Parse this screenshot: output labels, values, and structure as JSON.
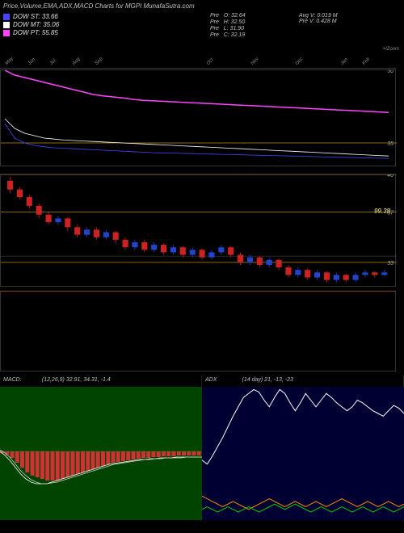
{
  "title": "Price,Volume,EMA,ADX,MACD Charts for MGPI MunafaSutra.com",
  "legend": {
    "st": {
      "label": "DOW ST:",
      "value": "33.66",
      "color": "#4444ff"
    },
    "mt": {
      "label": "DOW MT:",
      "value": "35.06",
      "color": "#ffffff"
    },
    "pt": {
      "label": "DOW PT:",
      "value": "55.85",
      "color": "#ff44ff"
    }
  },
  "ohlc": {
    "o": {
      "label": "Pre",
      "key": "O:",
      "val": "32.64"
    },
    "h": {
      "label": "Pre",
      "key": "H:",
      "val": "32.50"
    },
    "l": {
      "label": "Pre",
      "key": "L:",
      "val": "31.90"
    },
    "c": {
      "label": "Pre",
      "key": "C:",
      "val": "32.19"
    }
  },
  "avg": {
    "v1": {
      "label": "Avg V:",
      "val": "0.019 M"
    },
    "v2": {
      "label": "Pre   V:",
      "val": "0.428 M"
    }
  },
  "zoom_hint": "+/Zoom",
  "price_chart": {
    "type": "line",
    "ylim": [
      30,
      50
    ],
    "yticks": [
      35,
      50
    ],
    "hlines": [
      {
        "y": 35,
        "color": "#8B6914"
      }
    ],
    "series": {
      "pt": {
        "color": "#ff44ff",
        "width": 1.5,
        "points": [
          50,
          49,
          48.5,
          48,
          47.5,
          47,
          46.5,
          46,
          45.5,
          45,
          44.7,
          44.5,
          44.3,
          44,
          43.8,
          43.7,
          43.6,
          43.5,
          43.4,
          43.3,
          43.2,
          43.1,
          43,
          42.9,
          42.8,
          42.7,
          42.6,
          42.5,
          42.4,
          42.3,
          42.2,
          42.1,
          42,
          41.9,
          41.8,
          41.7,
          41.6,
          41.5,
          41.4,
          41.3
        ]
      },
      "mt": {
        "color": "#ffffff",
        "width": 0.8,
        "points": [
          40,
          38,
          37,
          36.5,
          36,
          35.8,
          35.6,
          35.5,
          35.4,
          35.3,
          35.2,
          35.1,
          35,
          34.9,
          34.8,
          34.7,
          34.6,
          34.5,
          34.4,
          34.3,
          34.2,
          34.1,
          34,
          33.9,
          33.8,
          33.7,
          33.6,
          33.5,
          33.4,
          33.3,
          33.2,
          33.1,
          33,
          32.9,
          32.8,
          32.7,
          32.6,
          32.5,
          32.4,
          32.3
        ]
      },
      "st": {
        "color": "#4444ff",
        "width": 0.8,
        "points": [
          39,
          36,
          35,
          34.5,
          34.2,
          34,
          33.9,
          33.8,
          33.7,
          33.6,
          33.5,
          33.4,
          33.3,
          33.2,
          33.1,
          33,
          32.95,
          32.9,
          32.85,
          32.8,
          32.75,
          32.7,
          32.65,
          32.6,
          32.55,
          32.5,
          32.45,
          32.4,
          32.35,
          32.3,
          32.25,
          32.2,
          32.15,
          32.1,
          32.05,
          32,
          31.95,
          31.9,
          31.85,
          31.8
        ]
      }
    },
    "dow_value": "99.38"
  },
  "candle_chart": {
    "type": "candle",
    "ylim": [
      31,
      40
    ],
    "yticks": [
      33,
      37,
      40
    ],
    "hlines": [
      {
        "y": 40,
        "color": "#8B6914"
      },
      {
        "y": 37,
        "color": "#8B6914"
      },
      {
        "y": 33,
        "color": "#8B6914"
      }
    ],
    "extra_line": {
      "y": 33.5,
      "color": "#555555"
    },
    "candles": [
      {
        "o": 39.5,
        "c": 38.8,
        "h": 39.8,
        "l": 38.5,
        "color": "#cc2222"
      },
      {
        "o": 38.8,
        "c": 38.2,
        "h": 39.0,
        "l": 38.0,
        "color": "#cc2222"
      },
      {
        "o": 38.2,
        "c": 37.5,
        "h": 38.4,
        "l": 37.3,
        "color": "#cc2222"
      },
      {
        "o": 37.5,
        "c": 36.8,
        "h": 37.7,
        "l": 36.5,
        "color": "#cc2222"
      },
      {
        "o": 36.8,
        "c": 36.2,
        "h": 37.0,
        "l": 36.0,
        "color": "#cc2222"
      },
      {
        "o": 36.2,
        "c": 36.5,
        "h": 36.7,
        "l": 36.0,
        "color": "#2244cc"
      },
      {
        "o": 36.5,
        "c": 35.8,
        "h": 36.6,
        "l": 35.5,
        "color": "#cc2222"
      },
      {
        "o": 35.8,
        "c": 35.2,
        "h": 36.0,
        "l": 35.0,
        "color": "#cc2222"
      },
      {
        "o": 35.2,
        "c": 35.6,
        "h": 35.8,
        "l": 35.0,
        "color": "#2244cc"
      },
      {
        "o": 35.6,
        "c": 35.0,
        "h": 35.8,
        "l": 34.8,
        "color": "#cc2222"
      },
      {
        "o": 35.0,
        "c": 35.4,
        "h": 35.6,
        "l": 34.8,
        "color": "#2244cc"
      },
      {
        "o": 35.4,
        "c": 34.8,
        "h": 35.5,
        "l": 34.5,
        "color": "#cc2222"
      },
      {
        "o": 34.8,
        "c": 34.2,
        "h": 35.0,
        "l": 34.0,
        "color": "#cc2222"
      },
      {
        "o": 34.2,
        "c": 34.6,
        "h": 34.8,
        "l": 34.0,
        "color": "#2244cc"
      },
      {
        "o": 34.6,
        "c": 34.0,
        "h": 34.8,
        "l": 33.8,
        "color": "#cc2222"
      },
      {
        "o": 34.0,
        "c": 34.4,
        "h": 34.6,
        "l": 33.8,
        "color": "#2244cc"
      },
      {
        "o": 34.4,
        "c": 33.8,
        "h": 34.5,
        "l": 33.6,
        "color": "#cc2222"
      },
      {
        "o": 33.8,
        "c": 34.2,
        "h": 34.4,
        "l": 33.6,
        "color": "#2244cc"
      },
      {
        "o": 34.2,
        "c": 33.6,
        "h": 34.3,
        "l": 33.4,
        "color": "#cc2222"
      },
      {
        "o": 33.6,
        "c": 34.0,
        "h": 34.2,
        "l": 33.4,
        "color": "#2244cc"
      },
      {
        "o": 34.0,
        "c": 33.4,
        "h": 34.1,
        "l": 33.2,
        "color": "#cc2222"
      },
      {
        "o": 33.4,
        "c": 33.8,
        "h": 34.0,
        "l": 33.2,
        "color": "#2244cc"
      },
      {
        "o": 33.8,
        "c": 34.2,
        "h": 34.4,
        "l": 33.6,
        "color": "#2244cc"
      },
      {
        "o": 34.2,
        "c": 33.6,
        "h": 34.3,
        "l": 33.4,
        "color": "#cc2222"
      },
      {
        "o": 33.6,
        "c": 33.0,
        "h": 33.8,
        "l": 32.8,
        "color": "#cc2222"
      },
      {
        "o": 33.0,
        "c": 33.4,
        "h": 33.6,
        "l": 32.8,
        "color": "#2244cc"
      },
      {
        "o": 33.4,
        "c": 32.8,
        "h": 33.5,
        "l": 32.6,
        "color": "#cc2222"
      },
      {
        "o": 32.8,
        "c": 33.2,
        "h": 33.4,
        "l": 32.6,
        "color": "#2244cc"
      },
      {
        "o": 33.2,
        "c": 32.6,
        "h": 33.3,
        "l": 32.4,
        "color": "#cc2222"
      },
      {
        "o": 32.6,
        "c": 32.0,
        "h": 32.8,
        "l": 31.8,
        "color": "#cc2222"
      },
      {
        "o": 32.0,
        "c": 32.4,
        "h": 32.6,
        "l": 31.8,
        "color": "#2244cc"
      },
      {
        "o": 32.4,
        "c": 31.8,
        "h": 32.5,
        "l": 31.6,
        "color": "#cc2222"
      },
      {
        "o": 31.8,
        "c": 32.2,
        "h": 32.4,
        "l": 31.6,
        "color": "#2244cc"
      },
      {
        "o": 32.2,
        "c": 31.6,
        "h": 32.3,
        "l": 31.4,
        "color": "#cc2222"
      },
      {
        "o": 31.6,
        "c": 32.0,
        "h": 32.2,
        "l": 31.4,
        "color": "#2244cc"
      },
      {
        "o": 32.0,
        "c": 31.6,
        "h": 32.1,
        "l": 31.4,
        "color": "#cc2222"
      },
      {
        "o": 31.6,
        "c": 32.0,
        "h": 32.2,
        "l": 31.4,
        "color": "#2244cc"
      },
      {
        "o": 32.0,
        "c": 32.2,
        "h": 32.4,
        "l": 31.8,
        "color": "#2244cc"
      },
      {
        "o": 32.2,
        "c": 32.0,
        "h": 32.3,
        "l": 31.8,
        "color": "#cc2222"
      },
      {
        "o": 32.0,
        "c": 32.2,
        "h": 32.4,
        "l": 31.9,
        "color": "#2244cc"
      }
    ]
  },
  "macd": {
    "label": "MACD:",
    "params": "(12,26,9) 32.91, 34.31, -1.4",
    "bg": "#004400",
    "zero_y": 80,
    "hist_color": "#cc3333",
    "hist": [
      -2,
      -4,
      -8,
      -14,
      -20,
      -26,
      -30,
      -32,
      -34,
      -36,
      -36,
      -36,
      -34,
      -32,
      -30,
      -28,
      -26,
      -24,
      -22,
      -20,
      -18,
      -16,
      -14,
      -13,
      -12,
      -11,
      -10,
      -9,
      -8,
      -8,
      -7,
      -7,
      -6,
      -6,
      -6,
      -5,
      -5,
      -5,
      -5,
      -5
    ],
    "line1": {
      "color": "#ffffff",
      "points": [
        0,
        -5,
        -12,
        -20,
        -28,
        -34,
        -38,
        -40,
        -40,
        -40,
        -38,
        -36,
        -34,
        -32,
        -30,
        -28,
        -26,
        -24,
        -22,
        -20,
        -18,
        -16,
        -15,
        -14,
        -13,
        -12,
        -11,
        -10,
        -10,
        -9,
        -9,
        -8,
        -8,
        -8,
        -7,
        -7,
        -7,
        -7,
        -7,
        -7
      ]
    },
    "line2": {
      "color": "#cccccc",
      "points": [
        2,
        -2,
        -8,
        -16,
        -24,
        -30,
        -35,
        -38,
        -40,
        -40,
        -39,
        -38,
        -36,
        -34,
        -32,
        -30,
        -28,
        -26,
        -24,
        -22,
        -20,
        -18,
        -16,
        -15,
        -14,
        -13,
        -12,
        -11,
        -10,
        -10,
        -9,
        -9,
        -8,
        -8,
        -8,
        -8,
        -7,
        -7,
        -7,
        -7
      ]
    }
  },
  "adx": {
    "label": "ADX",
    "params": "(14   day) 21, -13, -23",
    "bg": "#000033",
    "lines": {
      "adx": {
        "color": "#ffffff",
        "points": [
          45,
          42,
          48,
          55,
          62,
          70,
          78,
          85,
          92,
          95,
          98,
          96,
          90,
          85,
          92,
          98,
          95,
          88,
          82,
          88,
          95,
          90,
          85,
          90,
          95,
          92,
          88,
          85,
          82,
          85,
          90,
          88,
          85,
          82,
          80,
          78,
          82,
          86,
          84,
          80
        ]
      },
      "pd": {
        "color": "#ff8800",
        "points": [
          18,
          16,
          14,
          12,
          10,
          12,
          14,
          12,
          10,
          8,
          10,
          12,
          14,
          16,
          14,
          12,
          10,
          12,
          14,
          12,
          10,
          12,
          14,
          12,
          10,
          12,
          14,
          16,
          14,
          12,
          10,
          12,
          14,
          12,
          10,
          12,
          14,
          12,
          10,
          12
        ]
      },
      "md": {
        "color": "#00cc00",
        "points": [
          8,
          10,
          8,
          6,
          8,
          10,
          8,
          6,
          8,
          10,
          8,
          6,
          8,
          10,
          12,
          10,
          8,
          10,
          12,
          10,
          8,
          6,
          8,
          10,
          8,
          6,
          8,
          10,
          8,
          6,
          8,
          10,
          8,
          6,
          8,
          10,
          8,
          6,
          8,
          10
        ]
      }
    }
  },
  "dates": [
    "May",
    "Jun",
    "Jul",
    "Aug",
    "Sep",
    "",
    "",
    "",
    "",
    "Oct",
    "",
    "Nov",
    "",
    "Dec",
    "",
    "Jan",
    "Feb"
  ]
}
